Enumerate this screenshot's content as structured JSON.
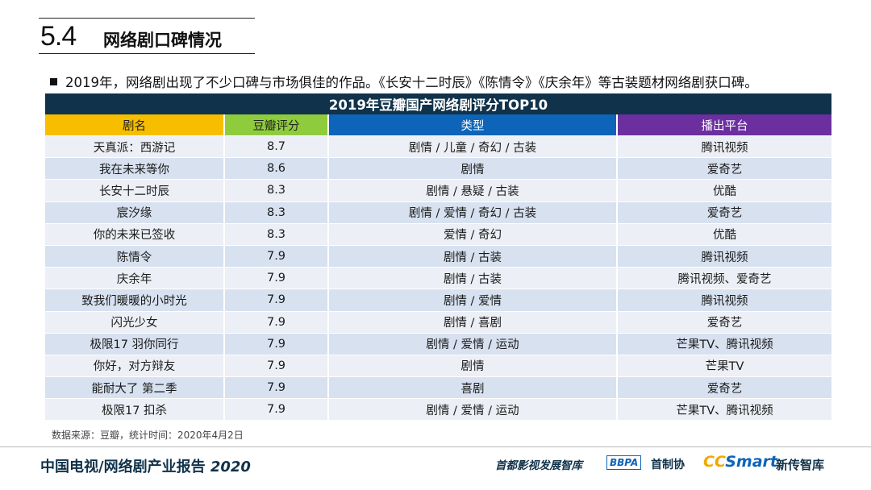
{
  "section": {
    "number": "5.4",
    "title": "网络剧口碑情况"
  },
  "bullet": "2019年，网络剧出现了不少口碑与市场俱佳的作品。《长安十二时辰》《陈情令》《庆余年》等古装题材网络剧获口碑。",
  "table": {
    "caption": "2019年豆瓣国产网络剧评分TOP10",
    "headers": [
      "剧名",
      "豆瓣评分",
      "类型",
      "播出平台"
    ],
    "rows": [
      {
        "name": "天真派：西游记",
        "score": "8.7",
        "genre": "剧情 / 儿童 / 奇幻 / 古装",
        "platform": "腾讯视频"
      },
      {
        "name": "我在未来等你",
        "score": "8.6",
        "genre": "剧情",
        "platform": "爱奇艺"
      },
      {
        "name": "长安十二时辰",
        "score": "8.3",
        "genre": "剧情 / 悬疑 / 古装",
        "platform": "优酷"
      },
      {
        "name": "宸汐缘",
        "score": "8.3",
        "genre": "剧情 / 爱情 / 奇幻 / 古装",
        "platform": "爱奇艺"
      },
      {
        "name": "你的未来已签收",
        "score": "8.3",
        "genre": "爱情 / 奇幻",
        "platform": "优酷"
      },
      {
        "name": "陈情令",
        "score": "7.9",
        "genre": "剧情 / 古装",
        "platform": "腾讯视频"
      },
      {
        "name": "庆余年",
        "score": "7.9",
        "genre": "剧情 / 古装",
        "platform": "腾讯视频、爱奇艺"
      },
      {
        "name": "致我们暖暖的小时光",
        "score": "7.9",
        "genre": "剧情 / 爱情",
        "platform": "腾讯视频"
      },
      {
        "name": "闪光少女",
        "score": "7.9",
        "genre": "剧情 / 喜剧",
        "platform": "爱奇艺"
      },
      {
        "name": "极限17 羽你同行",
        "score": "7.9",
        "genre": "剧情 / 爱情 / 运动",
        "platform": "芒果TV、腾讯视频"
      },
      {
        "name": "你好，对方辩友",
        "score": "7.9",
        "genre": "剧情",
        "platform": "芒果TV"
      },
      {
        "name": "能耐大了 第二季",
        "score": "7.9",
        "genre": "喜剧",
        "platform": "爱奇艺"
      },
      {
        "name": "极限17 扣杀",
        "score": "7.9",
        "genre": "剧情 / 爱情 / 运动",
        "platform": "芒果TV、腾讯视频"
      }
    ]
  },
  "source": "数据来源：豆瓣，统计时间：2020年4月2日",
  "footer": {
    "report_title": "中国电视/网络剧产业报告",
    "report_year": "2020",
    "org1": "首都影视发展智库",
    "org2_logo": "BBPA",
    "org2": "首制协",
    "org3_cc": "CC",
    "org3_smart": "Smart",
    "org3": "新传智库"
  },
  "colors": {
    "caption_bg": "#10324a",
    "h_name": "#f7be00",
    "h_score": "#8fcc3d",
    "h_genre": "#0e64b8",
    "h_platform": "#6b2fa0"
  }
}
